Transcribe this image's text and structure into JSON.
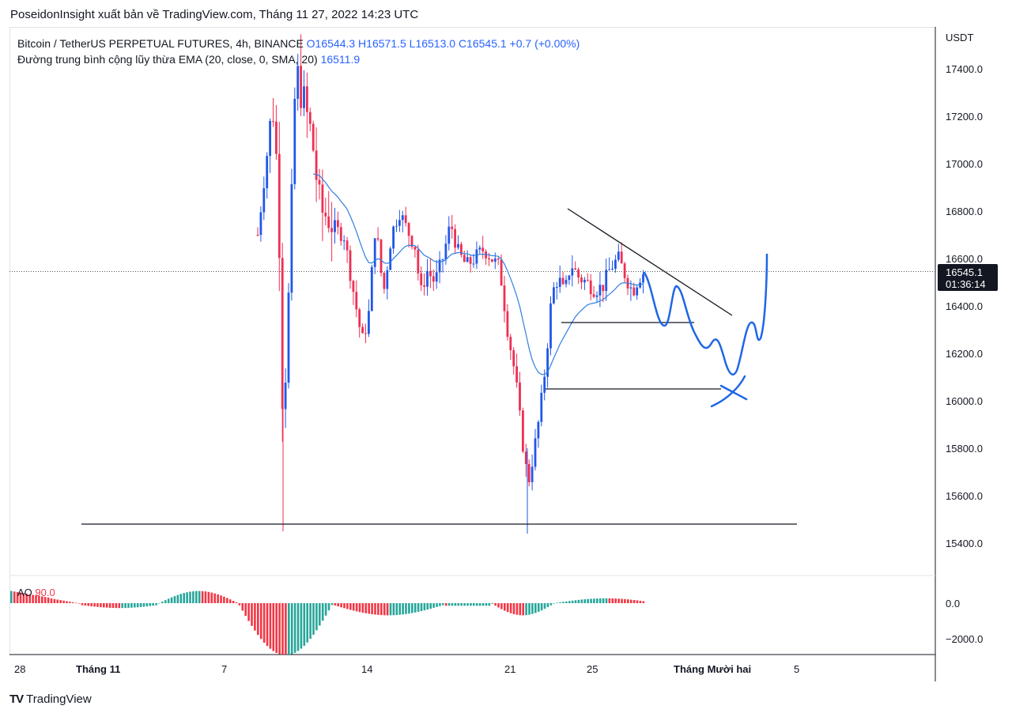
{
  "header": {
    "text": "PoseidonInsight xuất bản về TradingView.com, Tháng 11 27, 2022 14:23 UTC"
  },
  "legend": {
    "symbol": "Bitcoin / TetherUS PERPETUAL FUTURES, 4h, BINANCE",
    "ohlc": "O16544.3  H16571.5  L16513.0  C16545.1  +0.7 (+0.00%)",
    "ema_label": "Đường trung bình cộng lũy thừa EMA (20, close, 0, SMA, 20)",
    "ema_value": "16511.9"
  },
  "price_badge": {
    "price": "16545.1",
    "countdown": "01:36:14"
  },
  "ao": {
    "label": "AO",
    "value": "90.0"
  },
  "footer": {
    "brand": "TradingView",
    "logo": "TV"
  },
  "colors": {
    "up": "#2157e8",
    "down": "#ee2f53",
    "ema": "#2f7fe0",
    "drawing_blue": "#1e66e6",
    "ao_up": "#26a69a",
    "ao_down": "#f23645"
  },
  "chart_data": {
    "type": "candlestick",
    "currency": "USDT",
    "price_axis_ticks": [
      "17400.0",
      "17200.0",
      "17000.0",
      "16800.0",
      "16600.0",
      "16400.0",
      "16200.0",
      "16000.0",
      "15800.0",
      "15600.0",
      "15400.0"
    ],
    "ylim": [
      15300,
      17560
    ],
    "ao_axis_ticks": [
      "0.0",
      "−2000.0"
    ],
    "x_axis_labels": [
      "28",
      "Tháng 11",
      "7",
      "14",
      "21",
      "25",
      "Tháng Mười hai",
      "5"
    ],
    "last_price": 16545.1,
    "ema_last": 16511.9,
    "trend_lines": [
      {
        "name": "support-15480",
        "price": 15480
      },
      {
        "name": "support-16050",
        "price": 16050
      },
      {
        "name": "support-16330",
        "price": 16330
      },
      {
        "name": "descending-resistance",
        "from": 16810,
        "to": 16360
      }
    ]
  }
}
